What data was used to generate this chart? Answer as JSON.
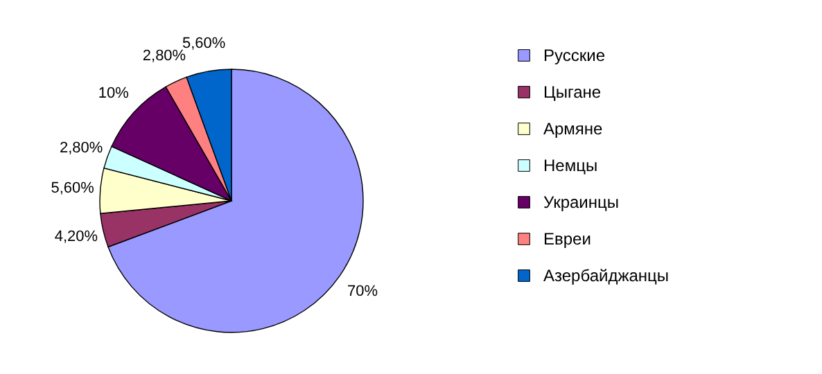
{
  "chart_data": {
    "type": "pie",
    "categories": [
      "Русские",
      "Цыгане",
      "Армяне",
      "Немцы",
      "Украинцы",
      "Евреи",
      "Азербайджанцы"
    ],
    "values": [
      70,
      4.2,
      5.6,
      2.8,
      10,
      2.8,
      5.6
    ],
    "value_labels": [
      "70%",
      "4,20%",
      "5,60%",
      "2,80%",
      "10%",
      "2,80%",
      "5,60%"
    ],
    "colors": [
      "#9999ff",
      "#993366",
      "#ffffcc",
      "#ccffff",
      "#660066",
      "#ff8080",
      "#0066cc"
    ],
    "legend": "right"
  }
}
